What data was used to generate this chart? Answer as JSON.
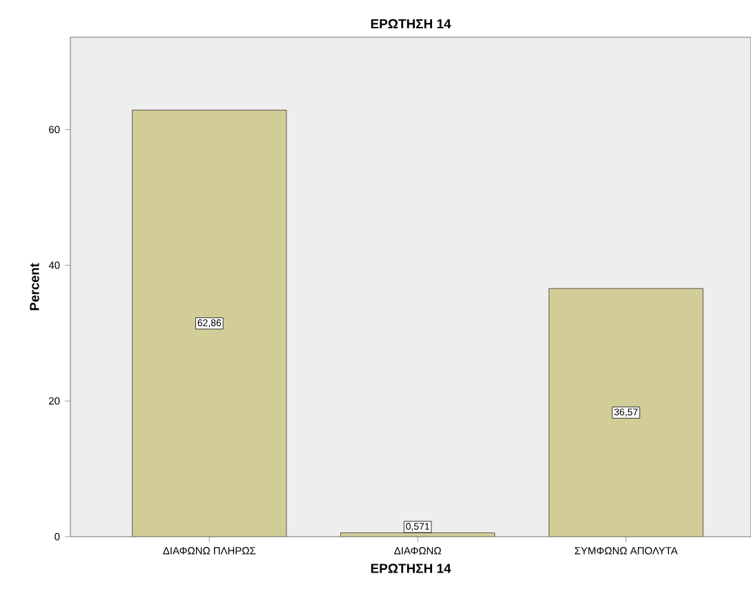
{
  "chart_data": {
    "type": "bar",
    "title": "ΕΡΩΤΗΣΗ 14",
    "xlabel": "ΕΡΩΤΗΣΗ 14",
    "ylabel": "Percent",
    "categories": [
      "ΔΙΑΦΩΝΩ ΠΛΗΡΩΣ",
      "ΔΙΑΦΩΝΩ",
      "ΣΥΜΦΩΝΩ ΑΠΟΛΥΤΑ"
    ],
    "values": [
      62.86,
      0.571,
      36.57
    ],
    "value_labels": [
      "62,86",
      "0,571",
      "36,57"
    ],
    "color": "#d2cd96",
    "ylim": [
      0,
      73.6
    ],
    "yticks": [
      0,
      20,
      40,
      60
    ],
    "grid": false
  }
}
